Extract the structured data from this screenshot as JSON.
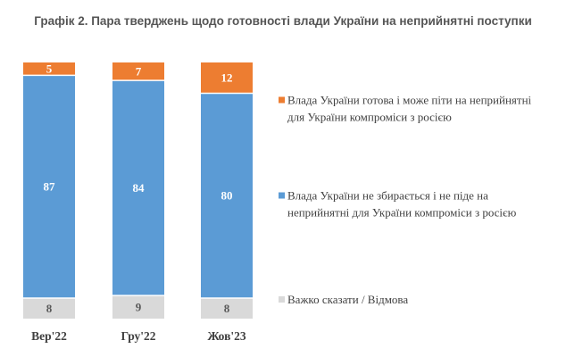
{
  "chart_data": {
    "type": "bar",
    "stacked": true,
    "normalized": true,
    "title": "Графік 2. Пара тверджень щодо готовності влади України на неприйнятні поступки",
    "xlabel": "",
    "ylabel": "",
    "ylim": [
      0,
      100
    ],
    "grid": false,
    "legend_position": "right",
    "categories": [
      "Вер'22",
      "Гру'22",
      "Жов'23"
    ],
    "series": [
      {
        "name": "Важко сказати / Відмова",
        "color": "#d9d9d9",
        "label_color": "#595959",
        "values": [
          8,
          9,
          8
        ]
      },
      {
        "name": "Влада України не збирається і не піде на неприйнятні для України компроміси з росією",
        "color": "#5b9bd5",
        "label_color": "#ffffff",
        "values": [
          87,
          84,
          80
        ]
      },
      {
        "name": "Влада України готова і може піти на неприйнятні для України компроміси з росією",
        "color": "#ed7d31",
        "label_color": "#ffffff",
        "values": [
          5,
          7,
          12
        ]
      }
    ]
  }
}
